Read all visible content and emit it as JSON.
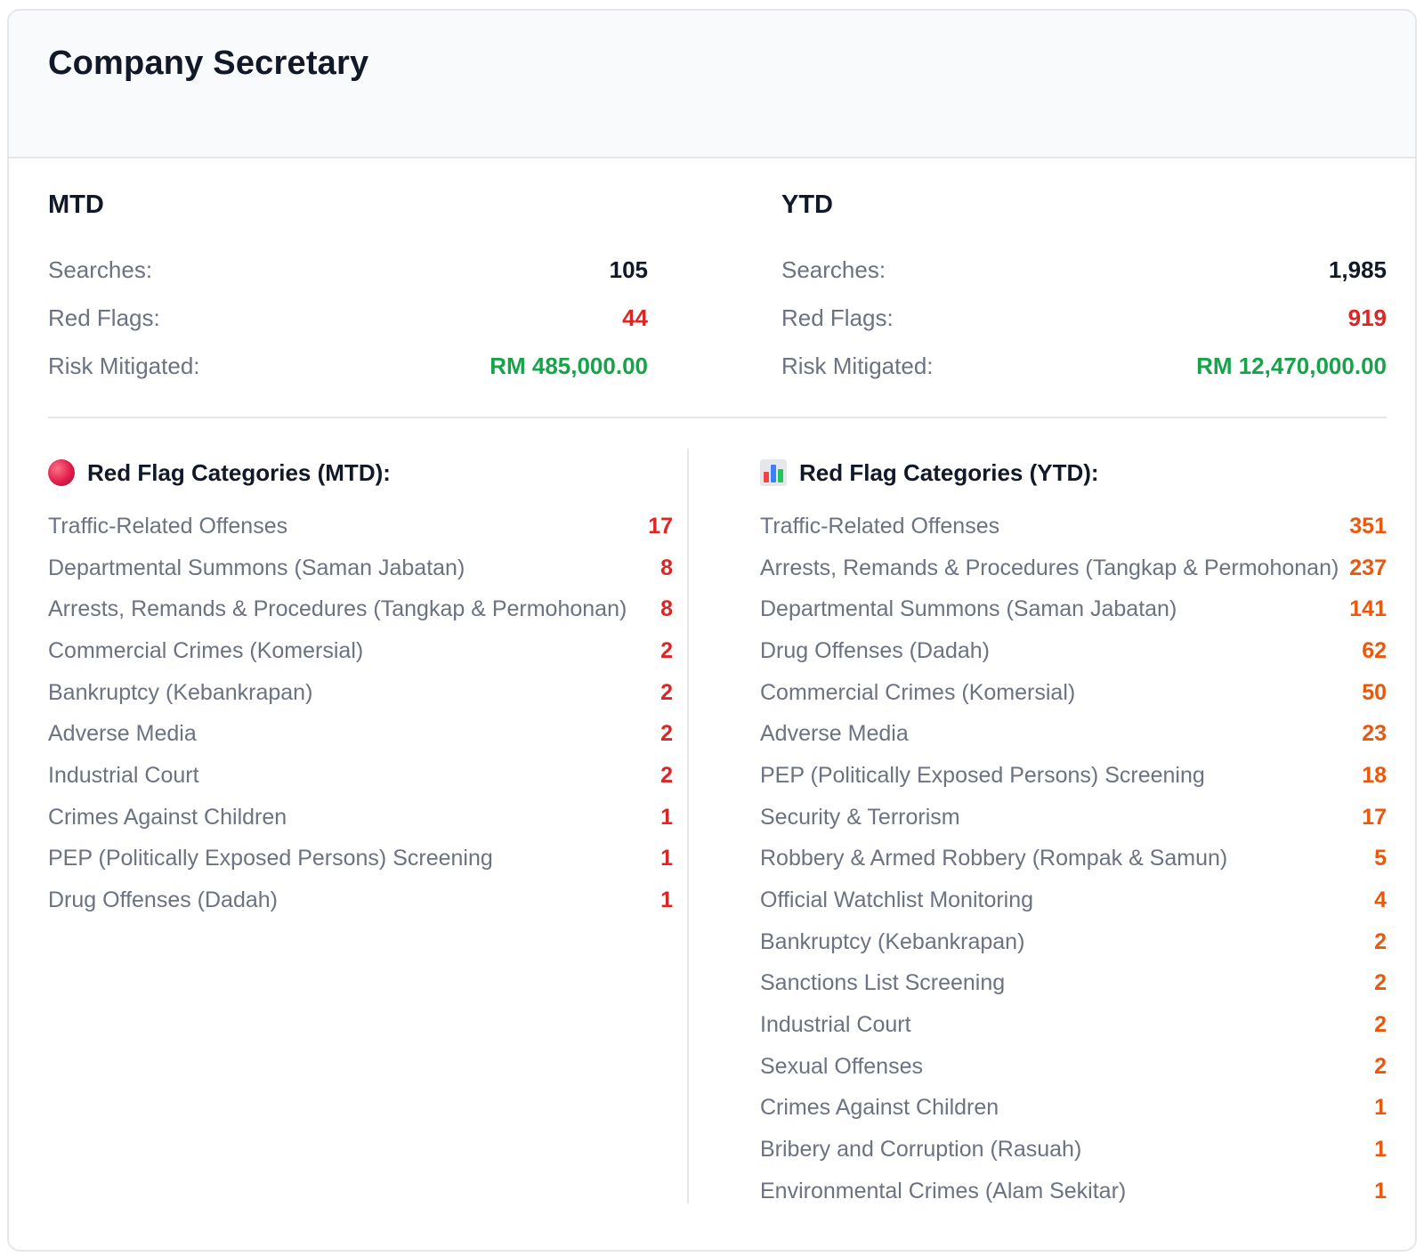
{
  "card": {
    "title": "Company Secretary"
  },
  "mtd": {
    "heading": "MTD",
    "searches_label": "Searches:",
    "searches_value": "105",
    "red_flags_label": "Red Flags:",
    "red_flags_value": "44",
    "risk_label": "Risk Mitigated:",
    "risk_value": "RM 485,000.00"
  },
  "ytd": {
    "heading": "YTD",
    "searches_label": "Searches:",
    "searches_value": "1,985",
    "red_flags_label": "Red Flags:",
    "red_flags_value": "919",
    "risk_label": "Risk Mitigated:",
    "risk_value": "RM 12,470,000.00"
  },
  "categories_mtd": {
    "heading": "Red Flag Categories (MTD):",
    "icon": "red-circle-icon",
    "items": [
      {
        "label": "Traffic-Related Offenses",
        "value": "17"
      },
      {
        "label": "Departmental Summons (Saman Jabatan)",
        "value": "8"
      },
      {
        "label": "Arrests, Remands & Procedures (Tangkap & Permohonan)",
        "value": "8"
      },
      {
        "label": "Commercial Crimes (Komersial)",
        "value": "2"
      },
      {
        "label": "Bankruptcy (Kebankrapan)",
        "value": "2"
      },
      {
        "label": "Adverse Media",
        "value": "2"
      },
      {
        "label": "Industrial Court",
        "value": "2"
      },
      {
        "label": "Crimes Against Children",
        "value": "1"
      },
      {
        "label": "PEP (Politically Exposed Persons) Screening",
        "value": "1"
      },
      {
        "label": "Drug Offenses (Dadah)",
        "value": "1"
      }
    ]
  },
  "categories_ytd": {
    "heading": "Red Flag Categories (YTD):",
    "icon": "bar-chart-icon",
    "items": [
      {
        "label": "Traffic-Related Offenses",
        "value": "351"
      },
      {
        "label": "Arrests, Remands & Procedures (Tangkap & Permohonan)",
        "value": "237"
      },
      {
        "label": "Departmental Summons (Saman Jabatan)",
        "value": "141"
      },
      {
        "label": "Drug Offenses (Dadah)",
        "value": "62"
      },
      {
        "label": "Commercial Crimes (Komersial)",
        "value": "50"
      },
      {
        "label": "Adverse Media",
        "value": "23"
      },
      {
        "label": "PEP (Politically Exposed Persons) Screening",
        "value": "18"
      },
      {
        "label": "Security & Terrorism",
        "value": "17"
      },
      {
        "label": "Robbery & Armed Robbery (Rompak & Samun)",
        "value": "5"
      },
      {
        "label": "Official Watchlist Monitoring",
        "value": "4"
      },
      {
        "label": "Bankruptcy (Kebankrapan)",
        "value": "2"
      },
      {
        "label": "Sanctions List Screening",
        "value": "2"
      },
      {
        "label": "Industrial Court",
        "value": "2"
      },
      {
        "label": "Sexual Offenses",
        "value": "2"
      },
      {
        "label": "Crimes Against Children",
        "value": "1"
      },
      {
        "label": "Bribery and Corruption (Rasuah)",
        "value": "1"
      },
      {
        "label": "Environmental Crimes (Alam Sekitar)",
        "value": "1"
      }
    ]
  },
  "colors": {
    "red": "#dc2626",
    "green": "#16a34a",
    "orange": "#ea580c",
    "header_bg": "#f8fafc"
  }
}
